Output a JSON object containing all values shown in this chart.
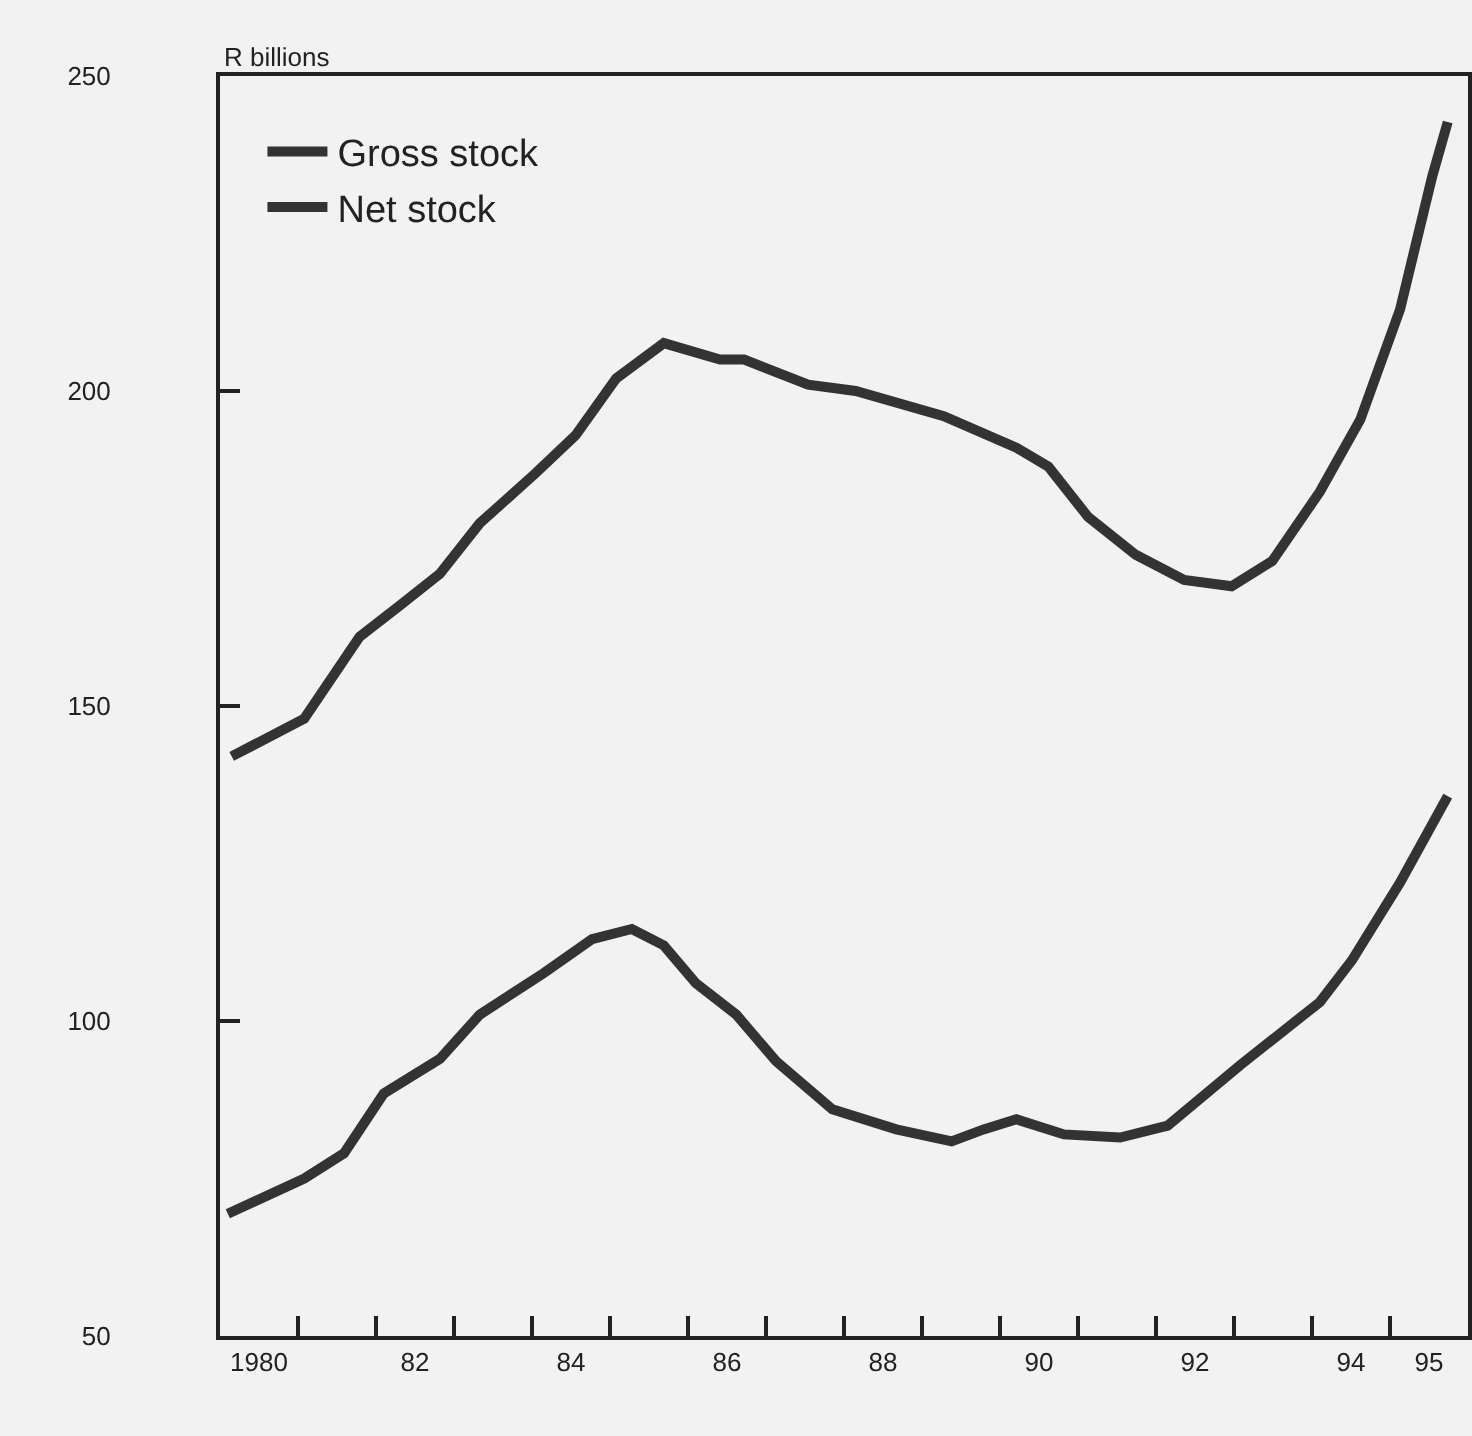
{
  "chart_data": {
    "type": "line",
    "ylabel": "R billions",
    "xlim": [
      1979.5,
      1995.5
    ],
    "xticks": [
      {
        "value": 1980,
        "label": "1980"
      },
      {
        "value": 1982,
        "label": "82"
      },
      {
        "value": 1984,
        "label": "84"
      },
      {
        "value": 1986,
        "label": "86"
      },
      {
        "value": 1988,
        "label": "88"
      },
      {
        "value": 1990,
        "label": "90"
      },
      {
        "value": 1992,
        "label": "92"
      },
      {
        "value": 1994,
        "label": "94"
      },
      {
        "value": 1995,
        "label": "95"
      },
      {
        "value": 1980.5,
        "label": null
      },
      {
        "value": 1981.5,
        "label": null
      },
      {
        "value": 1982.5,
        "label": null
      },
      {
        "value": 1983.5,
        "label": null
      },
      {
        "value": 1984.5,
        "label": null
      },
      {
        "value": 1985.5,
        "label": null
      },
      {
        "value": 1986.5,
        "label": null
      },
      {
        "value": 1987.5,
        "label": null
      },
      {
        "value": 1988.5,
        "label": null
      },
      {
        "value": 1989.5,
        "label": null
      },
      {
        "value": 1990.5,
        "label": null
      },
      {
        "value": 1991.5,
        "label": null
      },
      {
        "value": 1992.5,
        "label": null
      },
      {
        "value": 1993.5,
        "label": null
      },
      {
        "value": 1994.5,
        "label": null
      }
    ],
    "ylim": [
      50,
      250
    ],
    "yticks": [
      50,
      100,
      150,
      200,
      250
    ],
    "grid": false,
    "legend": "top left",
    "marker": "none",
    "line_style": "solid",
    "series": [
      {
        "name": "Gross stock",
        "color": "#333333",
        "x": [
          1979.65,
          1980.58,
          1981.29,
          1981.81,
          1982.32,
          1982.83,
          1983.55,
          1984.06,
          1984.58,
          1985.19,
          1985.91,
          1986.22,
          1987.04,
          1987.65,
          1988.78,
          1989.71,
          1990.12,
          1990.63,
          1991.24,
          1991.86,
          1992.47,
          1992.99,
          1993.6,
          1994.12,
          1994.63,
          1995.04,
          1995.24
        ],
        "values": [
          142,
          148,
          161,
          166,
          171,
          179,
          187,
          193,
          202,
          207.6,
          205,
          205,
          201,
          200,
          196,
          191,
          188,
          180,
          174,
          170,
          169,
          173,
          184,
          195.5,
          213,
          234,
          242.7
        ]
      },
      {
        "name": "Net stock",
        "color": "#333333",
        "x": [
          1979.6,
          1980.58,
          1981.09,
          1981.6,
          1982.32,
          1982.83,
          1983.65,
          1984.27,
          1984.78,
          1985.19,
          1985.6,
          1986.12,
          1986.63,
          1987.35,
          1988.17,
          1988.88,
          1989.29,
          1989.71,
          1990.32,
          1991.04,
          1991.65,
          1992.58,
          1993.6,
          1994.01,
          1994.63,
          1995.24
        ],
        "values": [
          69.4,
          75,
          79,
          88.5,
          94,
          101,
          107.6,
          113,
          114.6,
          112,
          106,
          101,
          93.6,
          86,
          82.8,
          80.9,
          82.8,
          84.4,
          82,
          81.5,
          83.4,
          93,
          103,
          109.6,
          122,
          135.7
        ]
      }
    ]
  }
}
